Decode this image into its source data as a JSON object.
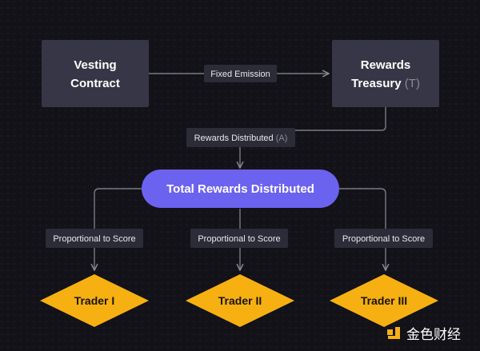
{
  "nodes": {
    "vesting": {
      "line1": "Vesting",
      "line2": "Contract"
    },
    "treasury": {
      "line1": "Rewards",
      "line2": "Treasury",
      "suffix": "(T)"
    },
    "total": {
      "label": "Total Rewards Distributed"
    },
    "traders": [
      {
        "label": "Trader I"
      },
      {
        "label": "Trader II"
      },
      {
        "label": "Trader III"
      }
    ]
  },
  "edges": {
    "emission": {
      "label": "Fixed Emission"
    },
    "distributed": {
      "label": "Rewards Distributed",
      "suffix": "(A)"
    },
    "proportional": [
      {
        "label": "Proportional to Score"
      },
      {
        "label": "Proportional to Score"
      },
      {
        "label": "Proportional to Score"
      }
    ]
  },
  "watermark": {
    "text": "金色财经"
  },
  "colors": {
    "background": "#121218",
    "box": "#363646",
    "pill": "#6c62f0",
    "diamond": "#f6b012"
  }
}
